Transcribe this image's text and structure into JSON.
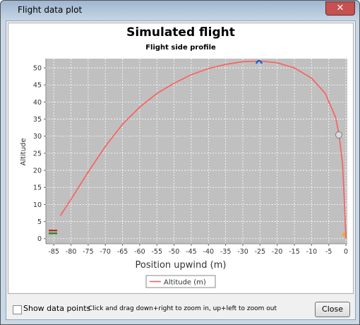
{
  "window": {
    "title": "Flight data plot"
  },
  "chart_data": {
    "type": "line",
    "title": "Simulated flight",
    "subtitle": "Flight side profile",
    "x_label": "Position upwind (m)",
    "y_label": "Altitude",
    "xlim": [
      -87.3,
      0.4
    ],
    "ylim": [
      -1.5,
      52.7
    ],
    "xticks": [
      -85,
      -80,
      -75,
      -70,
      -65,
      -60,
      -55,
      -50,
      -45,
      -40,
      -35,
      -30,
      -25,
      -20,
      -15,
      -10,
      -5,
      0
    ],
    "yticks": [
      0,
      5,
      10,
      15,
      20,
      25,
      30,
      35,
      40,
      45,
      50
    ],
    "grid": true,
    "legend_position": "bottom",
    "series": [
      {
        "name": "Altitude (m)",
        "color": "#ff5c5c",
        "x": [
          -83.1,
          -80,
          -75,
          -70,
          -65,
          -60,
          -55,
          -50,
          -45,
          -40,
          -35,
          -30,
          -25,
          -20,
          -15,
          -10,
          -6,
          -3,
          -2,
          -1,
          -0.5,
          -0.2,
          0
        ],
        "values": [
          6.7,
          11.5,
          19.5,
          27,
          33.5,
          38.5,
          42.5,
          45.5,
          48,
          49.8,
          51,
          51.8,
          52,
          51.5,
          50,
          47,
          42.5,
          35.5,
          30.5,
          22,
          12,
          5,
          0
        ]
      }
    ]
  },
  "controls": {
    "checkbox": "Show data points",
    "hint": "Click and drag down+right to zoom in, up+left to zoom out",
    "button": "Close"
  }
}
